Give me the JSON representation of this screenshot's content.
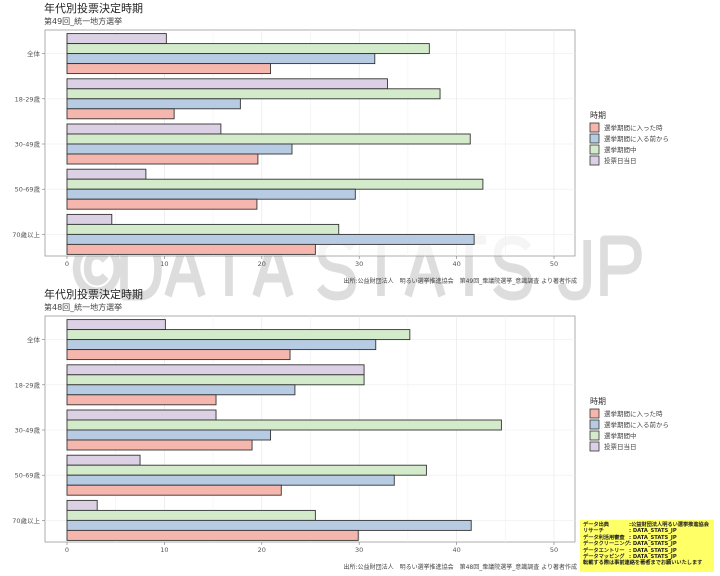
{
  "colors": {
    "red": "#f4b6ad",
    "blue": "#b7cbe3",
    "green": "#d3ebcb",
    "purple": "#dcd0e5"
  },
  "watermark": "©DATA STATS JP",
  "chart_data": [
    {
      "type": "bar",
      "orientation": "horizontal",
      "title": "年代別投票決定時期",
      "subtitle": "第49回_統一地方選挙",
      "caption": "出所:公益財団法人　明るい選挙推進協会　第49回_衆議院選挙_意識調査 より著者作成",
      "categories": [
        "全体",
        "18-29歳",
        "30-49歳",
        "50-69歳",
        "70歳以上"
      ],
      "xlim": [
        0,
        50
      ],
      "xticks": [
        "0",
        "10",
        "20",
        "30",
        "40",
        "50"
      ],
      "legend_title": "時期",
      "legend_position": "right",
      "series": [
        {
          "name": "選挙期間に入った時",
          "color": "red",
          "values": [
            20.9,
            11.0,
            19.6,
            19.5,
            25.5
          ]
        },
        {
          "name": "選挙期間に入る前から",
          "color": "blue",
          "values": [
            31.6,
            17.8,
            23.1,
            29.6,
            41.8
          ]
        },
        {
          "name": "選挙期間中",
          "color": "green",
          "values": [
            37.2,
            38.3,
            41.4,
            42.7,
            27.9
          ]
        },
        {
          "name": "投票日当日",
          "color": "purple",
          "values": [
            10.2,
            32.9,
            15.8,
            8.1,
            4.6
          ]
        }
      ]
    },
    {
      "type": "bar",
      "orientation": "horizontal",
      "title": "年代別投票決定時期",
      "subtitle": "第48回_統一地方選挙",
      "caption": "出所:公益財団法人　明るい選挙推進協会　第48回_衆議院選挙_意識調査 より著者作成",
      "categories": [
        "全体",
        "18-29歳",
        "30-49歳",
        "50-69歳",
        "70歳以上"
      ],
      "xlim": [
        0,
        50
      ],
      "xticks": [
        "0",
        "10",
        "20",
        "30",
        "40",
        "50"
      ],
      "legend_title": "時期",
      "legend_position": "right",
      "series": [
        {
          "name": "選挙期間に入った時",
          "color": "red",
          "values": [
            22.9,
            15.3,
            19.0,
            22.0,
            29.9
          ]
        },
        {
          "name": "選挙期間に入る前から",
          "color": "blue",
          "values": [
            31.7,
            23.4,
            20.9,
            33.6,
            41.5
          ]
        },
        {
          "name": "選挙期間中",
          "color": "green",
          "values": [
            35.2,
            30.5,
            44.6,
            36.9,
            25.5
          ]
        },
        {
          "name": "投票日当日",
          "color": "purple",
          "values": [
            10.1,
            30.5,
            15.3,
            7.5,
            3.1
          ]
        }
      ]
    }
  ],
  "credit": [
    {
      "k": "データ出典",
      "v": ":公益財団法人明るい選挙推進協会"
    },
    {
      "k": "リサーチ",
      "v": ": DATA_STATS_JP"
    },
    {
      "k": "データ利活用審査",
      "v": ": DATA_STATS_JP"
    },
    {
      "k": "データクリーニング",
      "v": ": DATA_STATS_JP"
    },
    {
      "k": "データエントリー",
      "v": ": DATA_STATS_JP"
    },
    {
      "k": "データマッピング",
      "v": ": DATA_STATS_JP"
    }
  ],
  "credit_note": "転載する際は事前連絡を著者までお願いいたします"
}
